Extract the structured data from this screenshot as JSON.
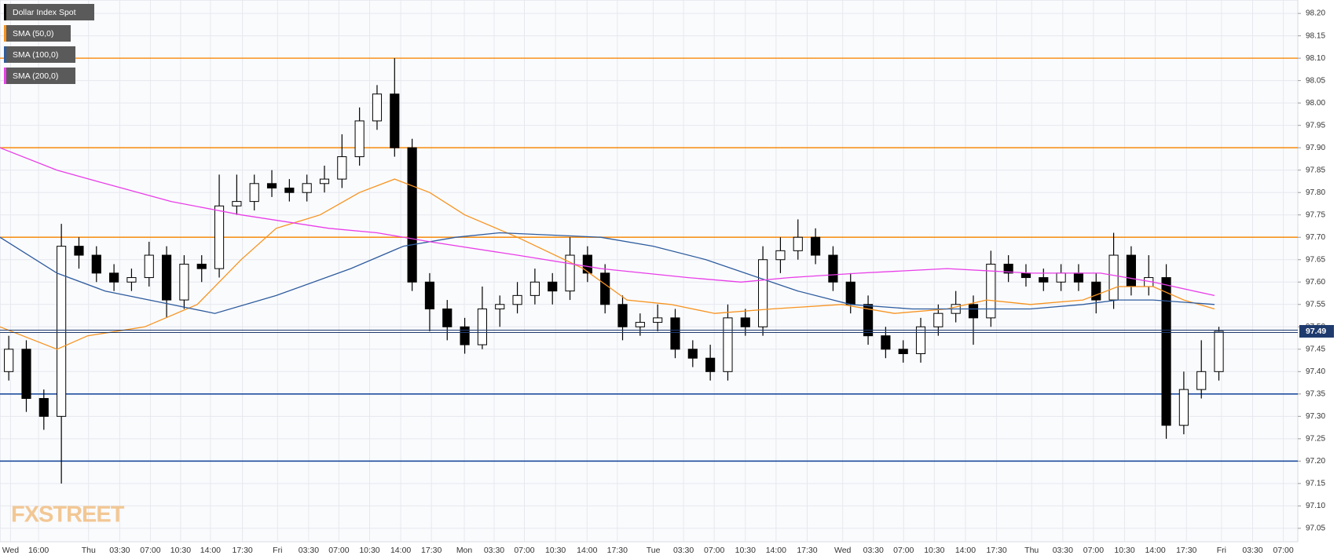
{
  "chart_data": {
    "type": "candlestick",
    "candles": {
      "name": "Dollar Index Spot",
      "up_color": "#ffffff",
      "down_color": "#000000",
      "edge_color": "#000000",
      "x": [
        0,
        4,
        8,
        12,
        16,
        20,
        24,
        28,
        32,
        36,
        40,
        44,
        48,
        52,
        56,
        60,
        64,
        68,
        72,
        76,
        80,
        84,
        88,
        92,
        96,
        100,
        104,
        108,
        112,
        116,
        120,
        124,
        128,
        132,
        136,
        140,
        144,
        148,
        152,
        156,
        160,
        164,
        168,
        172,
        176,
        180,
        184,
        188,
        192,
        196,
        200,
        204,
        208,
        212,
        216,
        220,
        224,
        228,
        232,
        236,
        240,
        244,
        248,
        252,
        256,
        260,
        264,
        268,
        272,
        276
      ],
      "open": [
        97.4,
        97.45,
        97.34,
        97.3,
        97.68,
        97.66,
        97.62,
        97.6,
        97.61,
        97.66,
        97.56,
        97.64,
        97.63,
        97.77,
        97.78,
        97.82,
        97.81,
        97.8,
        97.82,
        97.83,
        97.88,
        97.96,
        98.02,
        97.9,
        97.6,
        97.54,
        97.5,
        97.46,
        97.54,
        97.55,
        97.57,
        97.6,
        97.58,
        97.66,
        97.62,
        97.55,
        97.5,
        97.51,
        97.52,
        97.45,
        97.43,
        97.4,
        97.52,
        97.5,
        97.65,
        97.67,
        97.7,
        97.66,
        97.6,
        97.55,
        97.48,
        97.45,
        97.44,
        97.5,
        97.53,
        97.55,
        97.52,
        97.64,
        97.62,
        97.61,
        97.6,
        97.62,
        97.6,
        97.56,
        97.66,
        97.59,
        97.61,
        97.28,
        97.36,
        97.4
      ],
      "high": [
        97.48,
        97.47,
        97.36,
        97.73,
        97.7,
        97.68,
        97.64,
        97.63,
        97.69,
        97.68,
        97.66,
        97.66,
        97.84,
        97.84,
        97.84,
        97.85,
        97.83,
        97.84,
        97.86,
        97.93,
        97.99,
        98.04,
        98.1,
        97.92,
        97.62,
        97.56,
        97.52,
        97.59,
        97.57,
        97.6,
        97.63,
        97.62,
        97.7,
        97.68,
        97.64,
        97.57,
        97.53,
        97.55,
        97.54,
        97.47,
        97.46,
        97.55,
        97.54,
        97.68,
        97.7,
        97.74,
        97.72,
        97.68,
        97.62,
        97.57,
        97.5,
        97.47,
        97.52,
        97.55,
        97.58,
        97.57,
        97.67,
        97.66,
        97.64,
        97.63,
        97.64,
        97.64,
        97.62,
        97.71,
        97.68,
        97.66,
        97.64,
        97.4,
        97.47,
        97.5
      ],
      "low": [
        97.38,
        97.31,
        97.27,
        97.15,
        97.63,
        97.6,
        97.58,
        97.58,
        97.59,
        97.52,
        97.54,
        97.6,
        97.61,
        97.75,
        97.76,
        97.79,
        97.78,
        97.78,
        97.8,
        97.81,
        97.86,
        97.94,
        97.88,
        97.58,
        97.49,
        97.47,
        97.44,
        97.45,
        97.5,
        97.53,
        97.55,
        97.55,
        97.56,
        97.6,
        97.53,
        97.47,
        97.48,
        97.49,
        97.43,
        97.41,
        97.38,
        97.38,
        97.48,
        97.48,
        97.62,
        97.65,
        97.64,
        97.58,
        97.53,
        97.46,
        97.43,
        97.42,
        97.42,
        97.48,
        97.51,
        97.46,
        97.5,
        97.6,
        97.59,
        97.58,
        97.58,
        97.58,
        97.53,
        97.54,
        97.57,
        97.57,
        97.25,
        97.26,
        97.34,
        97.38
      ],
      "close": [
        97.45,
        97.34,
        97.3,
        97.68,
        97.66,
        97.62,
        97.6,
        97.61,
        97.66,
        97.56,
        97.64,
        97.63,
        97.77,
        97.78,
        97.82,
        97.81,
        97.8,
        97.82,
        97.83,
        97.88,
        97.96,
        98.02,
        97.9,
        97.6,
        97.54,
        97.5,
        97.46,
        97.54,
        97.55,
        97.57,
        97.6,
        97.58,
        97.66,
        97.62,
        97.55,
        97.5,
        97.51,
        97.52,
        97.45,
        97.43,
        97.4,
        97.52,
        97.5,
        97.65,
        97.67,
        97.7,
        97.66,
        97.6,
        97.55,
        97.48,
        97.45,
        97.44,
        97.5,
        97.53,
        97.55,
        97.52,
        97.64,
        97.62,
        97.61,
        97.6,
        97.62,
        97.6,
        97.56,
        97.66,
        97.59,
        97.61,
        97.28,
        97.36,
        97.4,
        97.49
      ]
    },
    "series": [
      {
        "name": "SMA (50,0)",
        "color": "#f7931e",
        "x": [
          0,
          13,
          20,
          33,
          45,
          55,
          63,
          73,
          82,
          90,
          98,
          106,
          118,
          133,
          143,
          153,
          163,
          176,
          192,
          204,
          216,
          225,
          235,
          247,
          255,
          263,
          270,
          277
        ],
        "values": [
          97.5,
          97.45,
          97.48,
          97.5,
          97.55,
          97.65,
          97.72,
          97.75,
          97.8,
          97.83,
          97.8,
          97.75,
          97.7,
          97.63,
          97.56,
          97.55,
          97.53,
          97.54,
          97.55,
          97.53,
          97.54,
          97.56,
          97.55,
          97.56,
          97.59,
          97.59,
          97.56,
          97.54
        ]
      },
      {
        "name": "SMA (100,0)",
        "color": "#2e5c9e",
        "x": [
          0,
          13,
          24,
          39,
          49,
          63,
          80,
          92,
          104,
          114,
          137,
          149,
          161,
          173,
          182,
          194,
          208,
          225,
          235,
          247,
          255,
          263,
          277
        ],
        "values": [
          97.7,
          97.62,
          97.58,
          97.55,
          97.53,
          97.57,
          97.63,
          97.68,
          97.7,
          97.71,
          97.7,
          97.68,
          97.65,
          97.61,
          97.58,
          97.55,
          97.54,
          97.54,
          97.54,
          97.55,
          97.56,
          97.56,
          97.55
        ]
      },
      {
        "name": "SMA (200,0)",
        "color": "#e83ee8",
        "x": [
          0,
          13,
          24,
          39,
          55,
          75,
          86,
          98,
          118,
          137,
          157,
          169,
          180,
          196,
          216,
          235,
          251,
          263,
          277
        ],
        "values": [
          97.9,
          97.85,
          97.82,
          97.78,
          97.75,
          97.72,
          97.71,
          97.69,
          97.66,
          97.63,
          97.61,
          97.6,
          97.61,
          97.62,
          97.63,
          97.62,
          97.62,
          97.6,
          97.57
        ]
      }
    ],
    "levels": [
      {
        "value": 98.1,
        "color": "#f7931e"
      },
      {
        "value": 97.9,
        "color": "#f7931e"
      },
      {
        "value": 97.7,
        "color": "#f7931e"
      },
      {
        "value": 97.35,
        "color": "#1f4e9e"
      },
      {
        "value": 97.2,
        "color": "#1f4e9e"
      }
    ],
    "last_price": 97.49,
    "watermark": "FXSTREET",
    "xlim": [
      0,
      296
    ],
    "xticks": [
      {
        "value": 2.4,
        "label": "Wed"
      },
      {
        "value": 8.8,
        "label": "16:00"
      },
      {
        "value": 20.2,
        "label": "Thu"
      },
      {
        "value": 27.3,
        "label": "03:30"
      },
      {
        "value": 34.3,
        "label": "07:00"
      },
      {
        "value": 41.2,
        "label": "10:30"
      },
      {
        "value": 48,
        "label": "14:00"
      },
      {
        "value": 55.3,
        "label": "17:30"
      },
      {
        "value": 63.3,
        "label": "Fri"
      },
      {
        "value": 70.4,
        "label": "03:30"
      },
      {
        "value": 77.3,
        "label": "07:00"
      },
      {
        "value": 84.3,
        "label": "10:30"
      },
      {
        "value": 91.4,
        "label": "14:00"
      },
      {
        "value": 98.4,
        "label": "17:30"
      },
      {
        "value": 105.9,
        "label": "Mon"
      },
      {
        "value": 112.7,
        "label": "03:30"
      },
      {
        "value": 119.6,
        "label": "07:00"
      },
      {
        "value": 126.7,
        "label": "10:30"
      },
      {
        "value": 133.9,
        "label": "14:00"
      },
      {
        "value": 140.8,
        "label": "17:30"
      },
      {
        "value": 149,
        "label": "Tue"
      },
      {
        "value": 155.9,
        "label": "03:30"
      },
      {
        "value": 162.9,
        "label": "07:00"
      },
      {
        "value": 170,
        "label": "10:30"
      },
      {
        "value": 177,
        "label": "14:00"
      },
      {
        "value": 184.1,
        "label": "17:30"
      },
      {
        "value": 192.2,
        "label": "Wed"
      },
      {
        "value": 199.2,
        "label": "03:30"
      },
      {
        "value": 206.1,
        "label": "07:00"
      },
      {
        "value": 213.1,
        "label": "10:30"
      },
      {
        "value": 220.2,
        "label": "14:00"
      },
      {
        "value": 227.3,
        "label": "17:30"
      },
      {
        "value": 235.3,
        "label": "Thu"
      },
      {
        "value": 242.4,
        "label": "03:30"
      },
      {
        "value": 249.4,
        "label": "07:00"
      },
      {
        "value": 256.5,
        "label": "10:30"
      },
      {
        "value": 263.5,
        "label": "14:00"
      },
      {
        "value": 270.6,
        "label": "17:30"
      },
      {
        "value": 278.6,
        "label": "Fri"
      },
      {
        "value": 285.7,
        "label": "03:30"
      },
      {
        "value": 292.7,
        "label": "07:00"
      }
    ],
    "ylim": [
      97.02,
      98.23
    ],
    "yticks": [
      97.05,
      {
        "value": 97.1,
        "label": "97.10"
      },
      97.15,
      {
        "value": 97.2,
        "label": "97.20"
      },
      97.25,
      {
        "value": 97.3,
        "label": "97.30"
      },
      97.35,
      {
        "value": 97.4,
        "label": "97.40"
      },
      97.45,
      {
        "value": 97.5,
        "label": "97.50"
      },
      97.55,
      {
        "value": 97.6,
        "label": "97.60"
      },
      97.65,
      {
        "value": 97.7,
        "label": "97.70"
      },
      97.75,
      {
        "value": 97.8,
        "label": "97.80"
      },
      97.85,
      {
        "value": 97.9,
        "label": "97.90"
      },
      97.95,
      {
        "value": 98,
        "label": "98.00"
      },
      98.05,
      {
        "value": 98.1,
        "label": "98.10"
      },
      98.15,
      {
        "value": 98.2,
        "label": "98.20"
      }
    ],
    "grid": true
  }
}
